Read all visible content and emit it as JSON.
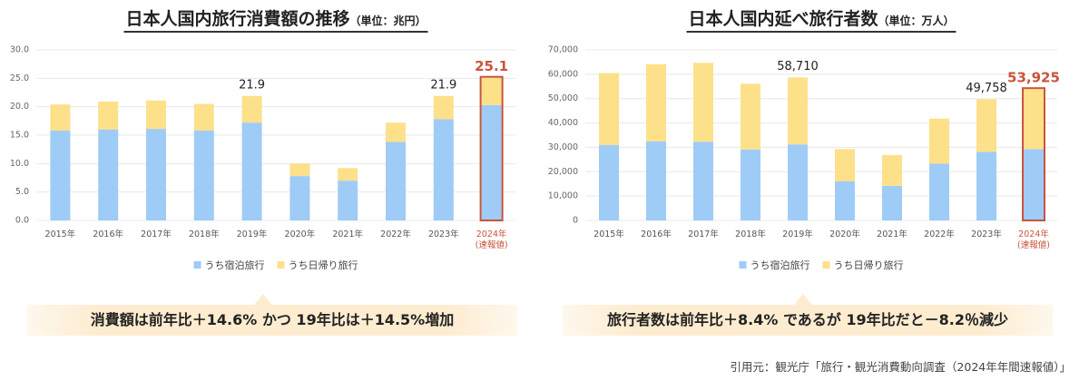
{
  "chart_data": [
    {
      "type": "stacked_bar",
      "title": "日本人国内旅行消費額の推移",
      "subtitle": "（単位：兆円）",
      "categories": [
        "2015年",
        "2016年",
        "2017年",
        "2018年",
        "2019年",
        "2020年",
        "2021年",
        "2022年",
        "2023年",
        "2024年\n(速報値)"
      ],
      "series": [
        {
          "name": "うち宿泊旅行",
          "color": "#9fcbf7",
          "values": [
            15.8,
            16.0,
            16.1,
            15.8,
            17.2,
            7.8,
            7.0,
            13.8,
            17.8,
            20.3
          ]
        },
        {
          "name": "うち日帰り旅行",
          "color": "#fde08a",
          "values": [
            4.6,
            4.9,
            5.0,
            4.7,
            4.7,
            2.2,
            2.2,
            3.4,
            4.1,
            4.8
          ]
        }
      ],
      "totals": [
        null,
        null,
        null,
        null,
        21.9,
        null,
        null,
        null,
        21.9,
        25.1
      ],
      "highlight": "2024年\n(速報値)",
      "highlight_color": "#c8553d",
      "ylim": [
        0,
        30
      ],
      "yticks": [
        {
          "value": 0,
          "label": "0.0"
        },
        {
          "value": 5,
          "label": "5.0"
        },
        {
          "value": 10,
          "label": "10.0"
        },
        {
          "value": 15,
          "label": "15.0"
        },
        {
          "value": 20,
          "label": "20.0"
        },
        {
          "value": 25,
          "label": "25.0"
        },
        {
          "value": 30,
          "label": "30.0"
        }
      ],
      "grid": true
    },
    {
      "type": "stacked_bar",
      "title": "日本人国内延べ旅行者数",
      "subtitle": "（単位：万人）",
      "categories": [
        "2015年",
        "2016年",
        "2017年",
        "2018年",
        "2019年",
        "2020年",
        "2021年",
        "2022年",
        "2023年",
        "2024年\n(速報値)"
      ],
      "series": [
        {
          "name": "うち宿泊旅行",
          "color": "#9fcbf7",
          "values": [
            31000,
            32500,
            32300,
            29100,
            31200,
            16000,
            14200,
            23300,
            28100,
            29300
          ]
        },
        {
          "name": "うち日帰り旅行",
          "color": "#fde08a",
          "values": [
            29500,
            31600,
            32400,
            27000,
            27510,
            13300,
            12600,
            18500,
            21658,
            24625
          ]
        }
      ],
      "totals": [
        null,
        null,
        null,
        null,
        58710,
        null,
        null,
        null,
        49758,
        53925
      ],
      "total_labels": [
        null,
        null,
        null,
        null,
        "58,710",
        null,
        null,
        null,
        "49,758",
        "53,925"
      ],
      "highlight": "2024年\n(速報値)",
      "highlight_color": "#c8553d",
      "ylim": [
        0,
        70000
      ],
      "yticks": [
        0,
        {
          "value": 10000,
          "label": "10,000"
        },
        {
          "value": 20000,
          "label": "20,000"
        },
        {
          "value": 30000,
          "label": "30,000"
        },
        {
          "value": 40000,
          "label": "40,000"
        },
        {
          "value": 50000,
          "label": "50,000"
        },
        {
          "value": 60000,
          "label": "60,000"
        },
        {
          "value": 70000,
          "label": "70,000"
        }
      ],
      "grid": true
    }
  ],
  "notes": [
    "消費額は前年比＋14.6% かつ 19年比は＋14.5%増加",
    "旅行者数は前年比＋8.4% であるが 19年比だと－8.2％減少"
  ],
  "source": "引用元：観光庁「旅行・観光消費動向調査（2024年年間速報値）」"
}
